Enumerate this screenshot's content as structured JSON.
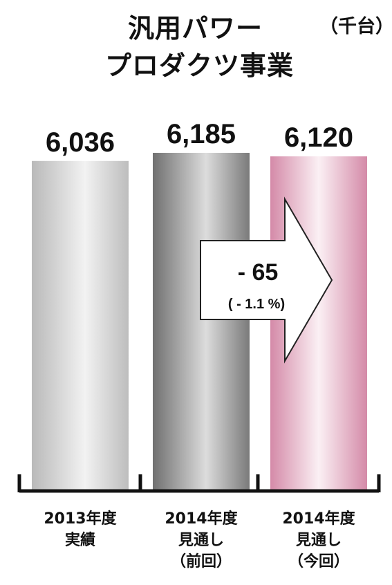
{
  "chart_data": {
    "type": "bar",
    "title": "汎用パワー\nプロダクツ事業",
    "title_lines": [
      "汎用パワー",
      "プロダクツ事業"
    ],
    "unit": "（千台）",
    "categories": [
      [
        "2013年度",
        "実績"
      ],
      [
        "2014年度",
        "見通し",
        "（前回）"
      ],
      [
        "2014年度",
        "見通し",
        "（今回）"
      ]
    ],
    "values": [
      6036,
      6185,
      6120
    ],
    "value_labels": [
      "6,036",
      "6,185",
      "6,120"
    ],
    "annotation": {
      "change": "- 65",
      "change_pct": "( - 1.1 %)"
    },
    "colors": [
      "#c8c8c8",
      "#8c8c8c",
      "#dca0b8"
    ]
  }
}
